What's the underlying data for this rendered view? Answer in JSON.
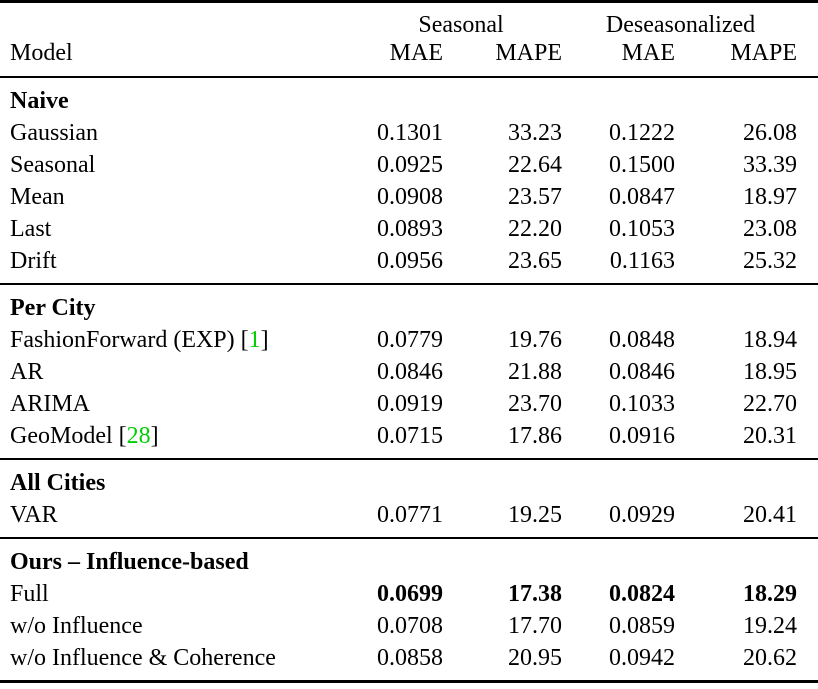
{
  "table": {
    "header": {
      "groups": [
        "Seasonal",
        "Deseasonalized"
      ],
      "model": "Model",
      "metrics": [
        "MAE",
        "MAPE",
        "MAE",
        "MAPE"
      ]
    },
    "citation_color": "#00d000",
    "sections": [
      {
        "title": "Naive",
        "rows": [
          {
            "m1": "Gaussian",
            "v": [
              "0.1301",
              "33.23",
              "0.1222",
              "26.08"
            ]
          },
          {
            "m1": "Seasonal",
            "v": [
              "0.0925",
              "22.64",
              "0.1500",
              "33.39"
            ]
          },
          {
            "m1": "Mean",
            "v": [
              "0.0908",
              "23.57",
              "0.0847",
              "18.97"
            ]
          },
          {
            "m1": "Last",
            "v": [
              "0.0893",
              "22.20",
              "0.1053",
              "23.08"
            ]
          },
          {
            "m1": "Drift",
            "v": [
              "0.0956",
              "23.65",
              "0.1163",
              "25.32"
            ]
          }
        ]
      },
      {
        "title": "Per City",
        "rows": [
          {
            "m1": "FashionForward (EXP) [",
            "cite": "1",
            "m2": "]",
            "v": [
              "0.0779",
              "19.76",
              "0.0848",
              "18.94"
            ]
          },
          {
            "m1": "AR",
            "v": [
              "0.0846",
              "21.88",
              "0.0846",
              "18.95"
            ]
          },
          {
            "m1": "ARIMA",
            "v": [
              "0.0919",
              "23.70",
              "0.1033",
              "22.70"
            ]
          },
          {
            "m1": "GeoModel [",
            "cite": "28",
            "m2": "]",
            "v": [
              "0.0715",
              "17.86",
              "0.0916",
              "20.31"
            ]
          }
        ]
      },
      {
        "title": "All Cities",
        "rows": [
          {
            "m1": "VAR",
            "v": [
              "0.0771",
              "19.25",
              "0.0929",
              "20.41"
            ]
          }
        ]
      },
      {
        "title": "Ours – Influence-based",
        "rows": [
          {
            "m1": "Full",
            "best": true,
            "v": [
              "0.0699",
              "17.38",
              "0.0824",
              "18.29"
            ]
          },
          {
            "m1": "w/o Influence",
            "v": [
              "0.0708",
              "17.70",
              "0.0859",
              "19.24"
            ]
          },
          {
            "m1": "w/o Influence & Coherence",
            "v": [
              "0.0858",
              "20.95",
              "0.0942",
              "20.62"
            ]
          }
        ]
      }
    ]
  }
}
